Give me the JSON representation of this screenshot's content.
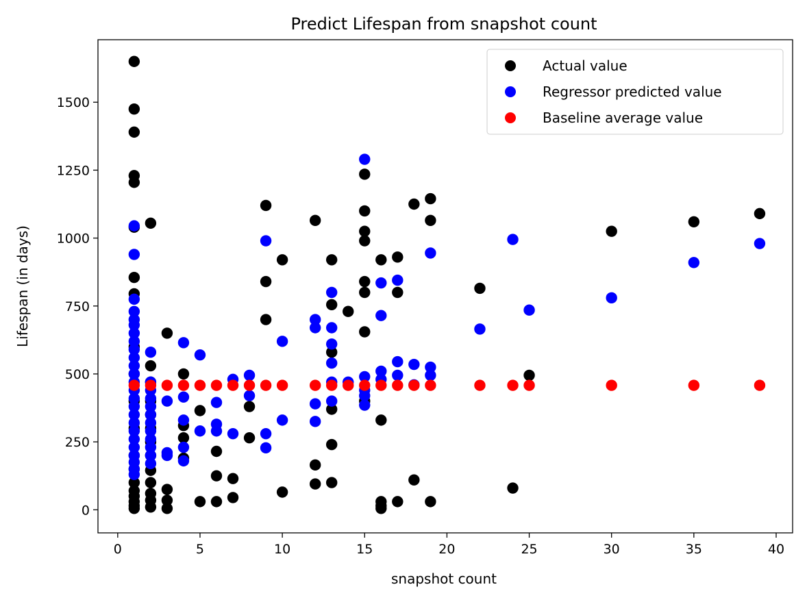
{
  "chart_data": {
    "type": "scatter",
    "title": "Predict Lifespan from snapshot count",
    "xlabel": "snapshot count",
    "ylabel": "Lifespan (in days)",
    "xlim": [
      -1.2,
      41
    ],
    "ylim": [
      -85,
      1730
    ],
    "xticks": [
      0,
      5,
      10,
      15,
      20,
      25,
      30,
      35,
      40
    ],
    "yticks": [
      0,
      250,
      500,
      750,
      1000,
      1250,
      1500
    ],
    "grid": false,
    "legend_position": "top-right",
    "series": [
      {
        "name": "Actual value",
        "color": "#000000",
        "points": [
          [
            1,
            1650
          ],
          [
            1,
            1475
          ],
          [
            1,
            1390
          ],
          [
            1,
            1230
          ],
          [
            1,
            1205
          ],
          [
            1,
            1040
          ],
          [
            1,
            855
          ],
          [
            1,
            795
          ],
          [
            1,
            600
          ],
          [
            1,
            500
          ],
          [
            1,
            400
          ],
          [
            1,
            300
          ],
          [
            1,
            200
          ],
          [
            1,
            150
          ],
          [
            1,
            100
          ],
          [
            1,
            70
          ],
          [
            1,
            50
          ],
          [
            1,
            30
          ],
          [
            1,
            15
          ],
          [
            1,
            5
          ],
          [
            2,
            1055
          ],
          [
            2,
            530
          ],
          [
            2,
            470
          ],
          [
            2,
            400
          ],
          [
            2,
            350
          ],
          [
            2,
            300
          ],
          [
            2,
            250
          ],
          [
            2,
            200
          ],
          [
            2,
            145
          ],
          [
            2,
            100
          ],
          [
            2,
            60
          ],
          [
            2,
            35
          ],
          [
            2,
            10
          ],
          [
            3,
            650
          ],
          [
            3,
            75
          ],
          [
            3,
            35
          ],
          [
            3,
            5
          ],
          [
            4,
            500
          ],
          [
            4,
            310
          ],
          [
            4,
            265
          ],
          [
            4,
            190
          ],
          [
            5,
            365
          ],
          [
            5,
            30
          ],
          [
            6,
            215
          ],
          [
            6,
            125
          ],
          [
            6,
            30
          ],
          [
            7,
            115
          ],
          [
            7,
            45
          ],
          [
            8,
            380
          ],
          [
            8,
            265
          ],
          [
            9,
            1120
          ],
          [
            9,
            840
          ],
          [
            9,
            700
          ],
          [
            10,
            920
          ],
          [
            10,
            65
          ],
          [
            12,
            1065
          ],
          [
            12,
            165
          ],
          [
            12,
            95
          ],
          [
            13,
            920
          ],
          [
            13,
            755
          ],
          [
            13,
            580
          ],
          [
            13,
            370
          ],
          [
            13,
            240
          ],
          [
            13,
            100
          ],
          [
            14,
            730
          ],
          [
            15,
            1235
          ],
          [
            15,
            1100
          ],
          [
            15,
            1025
          ],
          [
            15,
            990
          ],
          [
            15,
            840
          ],
          [
            15,
            800
          ],
          [
            15,
            655
          ],
          [
            15,
            400
          ],
          [
            16,
            920
          ],
          [
            16,
            330
          ],
          [
            16,
            30
          ],
          [
            16,
            15
          ],
          [
            16,
            5
          ],
          [
            17,
            930
          ],
          [
            17,
            800
          ],
          [
            17,
            30
          ],
          [
            18,
            1125
          ],
          [
            18,
            110
          ],
          [
            19,
            1145
          ],
          [
            19,
            1065
          ],
          [
            19,
            30
          ],
          [
            22,
            815
          ],
          [
            24,
            80
          ],
          [
            25,
            495
          ],
          [
            30,
            1025
          ],
          [
            35,
            1060
          ],
          [
            39,
            1090
          ]
        ]
      },
      {
        "name": "Regressor predicted value",
        "color": "#0000ff",
        "points": [
          [
            1,
            1045
          ],
          [
            1,
            940
          ],
          [
            1,
            775
          ],
          [
            1,
            730
          ],
          [
            1,
            700
          ],
          [
            1,
            680
          ],
          [
            1,
            650
          ],
          [
            1,
            620
          ],
          [
            1,
            590
          ],
          [
            1,
            560
          ],
          [
            1,
            530
          ],
          [
            1,
            500
          ],
          [
            1,
            470
          ],
          [
            1,
            440
          ],
          [
            1,
            410
          ],
          [
            1,
            380
          ],
          [
            1,
            350
          ],
          [
            1,
            320
          ],
          [
            1,
            290
          ],
          [
            1,
            260
          ],
          [
            1,
            230
          ],
          [
            1,
            200
          ],
          [
            1,
            175
          ],
          [
            1,
            150
          ],
          [
            1,
            130
          ],
          [
            2,
            580
          ],
          [
            2,
            470
          ],
          [
            2,
            440
          ],
          [
            2,
            410
          ],
          [
            2,
            380
          ],
          [
            2,
            350
          ],
          [
            2,
            320
          ],
          [
            2,
            290
          ],
          [
            2,
            260
          ],
          [
            2,
            230
          ],
          [
            2,
            200
          ],
          [
            2,
            170
          ],
          [
            3,
            400
          ],
          [
            3,
            210
          ],
          [
            3,
            200
          ],
          [
            4,
            615
          ],
          [
            4,
            415
          ],
          [
            4,
            330
          ],
          [
            4,
            230
          ],
          [
            4,
            180
          ],
          [
            5,
            570
          ],
          [
            5,
            290
          ],
          [
            6,
            395
          ],
          [
            6,
            315
          ],
          [
            6,
            290
          ],
          [
            7,
            480
          ],
          [
            7,
            280
          ],
          [
            8,
            495
          ],
          [
            8,
            420
          ],
          [
            9,
            990
          ],
          [
            9,
            280
          ],
          [
            9,
            228
          ],
          [
            10,
            620
          ],
          [
            10,
            330
          ],
          [
            12,
            700
          ],
          [
            12,
            670
          ],
          [
            12,
            390
          ],
          [
            12,
            325
          ],
          [
            13,
            800
          ],
          [
            13,
            670
          ],
          [
            13,
            610
          ],
          [
            13,
            540
          ],
          [
            13,
            470
          ],
          [
            13,
            400
          ],
          [
            14,
            470
          ],
          [
            15,
            1290
          ],
          [
            15,
            490
          ],
          [
            15,
            440
          ],
          [
            15,
            420
          ],
          [
            15,
            385
          ],
          [
            16,
            835
          ],
          [
            16,
            715
          ],
          [
            16,
            510
          ],
          [
            16,
            480
          ],
          [
            17,
            845
          ],
          [
            17,
            545
          ],
          [
            17,
            495
          ],
          [
            18,
            535
          ],
          [
            18,
            460
          ],
          [
            19,
            945
          ],
          [
            19,
            525
          ],
          [
            19,
            495
          ],
          [
            22,
            665
          ],
          [
            24,
            995
          ],
          [
            25,
            735
          ],
          [
            30,
            780
          ],
          [
            35,
            910
          ],
          [
            39,
            980
          ]
        ]
      },
      {
        "name": "Baseline average value",
        "color": "#ff0000",
        "points": [
          [
            1,
            458
          ],
          [
            2,
            458
          ],
          [
            3,
            458
          ],
          [
            4,
            458
          ],
          [
            5,
            458
          ],
          [
            6,
            458
          ],
          [
            7,
            458
          ],
          [
            8,
            458
          ],
          [
            9,
            458
          ],
          [
            10,
            458
          ],
          [
            12,
            458
          ],
          [
            13,
            458
          ],
          [
            14,
            458
          ],
          [
            15,
            458
          ],
          [
            16,
            458
          ],
          [
            17,
            458
          ],
          [
            18,
            458
          ],
          [
            19,
            458
          ],
          [
            22,
            458
          ],
          [
            24,
            458
          ],
          [
            25,
            458
          ],
          [
            30,
            458
          ],
          [
            35,
            458
          ],
          [
            39,
            458
          ]
        ]
      }
    ]
  }
}
